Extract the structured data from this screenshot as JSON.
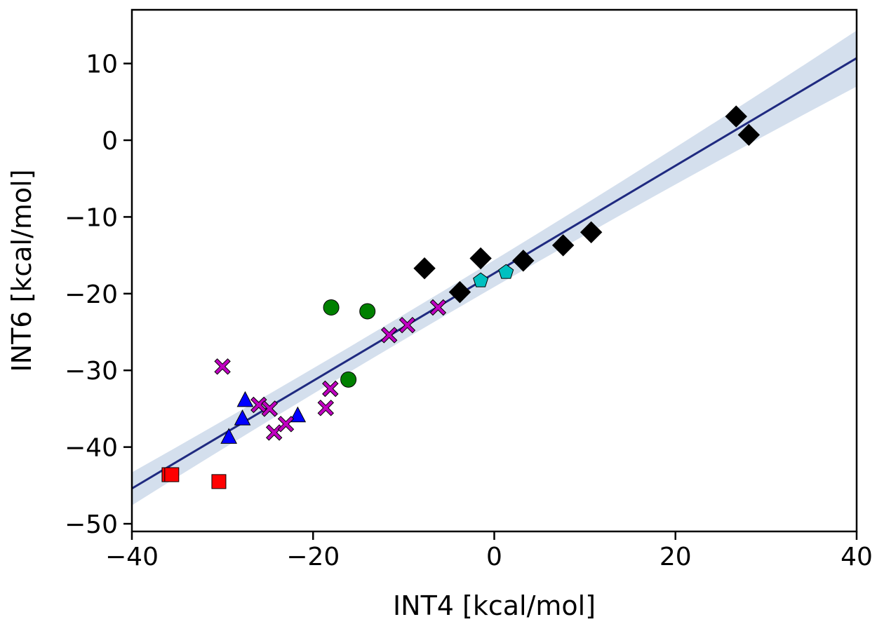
{
  "chart_data": {
    "type": "scatter",
    "title": "",
    "xlabel": "INT4 [kcal/mol]",
    "ylabel": "INT6 [kcal/mol]",
    "xlim": [
      -40,
      40
    ],
    "ylim": [
      -51,
      17
    ],
    "xticks": [
      -40,
      -20,
      0,
      20,
      40
    ],
    "yticks": [
      -50,
      -40,
      -30,
      -20,
      -10,
      0,
      10
    ],
    "xtick_labels": [
      "−40",
      "−20",
      "0",
      "20",
      "40"
    ],
    "ytick_labels": [
      "−50",
      "−40",
      "−30",
      "−20",
      "−10",
      "0",
      "10"
    ],
    "grid": false,
    "legend": "none",
    "fit_line": {
      "color": "#1f2a80",
      "x": [
        -40,
        40
      ],
      "y": [
        -45.4,
        10.7
      ],
      "band_color": "#b0c4de",
      "band_lower": [
        -47.6,
        7.0
      ],
      "band_upper": [
        -43.3,
        14.3
      ],
      "band_mid_halfwidth": 0.6
    },
    "series": [
      {
        "marker": "square",
        "color": "#ff0000",
        "points": [
          [
            -35.9,
            -43.6
          ],
          [
            -35.6,
            -43.6
          ],
          [
            -30.4,
            -44.5
          ]
        ]
      },
      {
        "marker": "triangle",
        "color": "#0000ff",
        "points": [
          [
            -27.5,
            -33.9
          ],
          [
            -27.8,
            -36.3
          ],
          [
            -29.3,
            -38.7
          ],
          [
            -21.7,
            -35.9
          ]
        ]
      },
      {
        "marker": "x",
        "color": "#c000c0",
        "points": [
          [
            -30.0,
            -29.5
          ],
          [
            -26.0,
            -34.5
          ],
          [
            -24.8,
            -35.0
          ],
          [
            -24.3,
            -38.1
          ],
          [
            -23.0,
            -37.0
          ],
          [
            -18.6,
            -34.9
          ],
          [
            -18.1,
            -32.4
          ],
          [
            -11.6,
            -25.4
          ],
          [
            -9.6,
            -24.1
          ],
          [
            -6.2,
            -21.8
          ]
        ]
      },
      {
        "marker": "circle",
        "color": "#008000",
        "points": [
          [
            -18.0,
            -21.8
          ],
          [
            -14.0,
            -22.3
          ],
          [
            -16.1,
            -31.2
          ]
        ]
      },
      {
        "marker": "pentagon",
        "color": "#00c0c0",
        "points": [
          [
            -1.5,
            -18.3
          ],
          [
            1.3,
            -17.2
          ]
        ]
      },
      {
        "marker": "diamond",
        "color": "#000000",
        "points": [
          [
            -7.7,
            -16.7
          ],
          [
            -1.5,
            -15.4
          ],
          [
            -3.8,
            -19.8
          ],
          [
            3.2,
            -15.7
          ],
          [
            7.6,
            -13.7
          ],
          [
            10.7,
            -12.0
          ],
          [
            26.7,
            3.1
          ],
          [
            28.1,
            0.7
          ]
        ]
      }
    ]
  }
}
